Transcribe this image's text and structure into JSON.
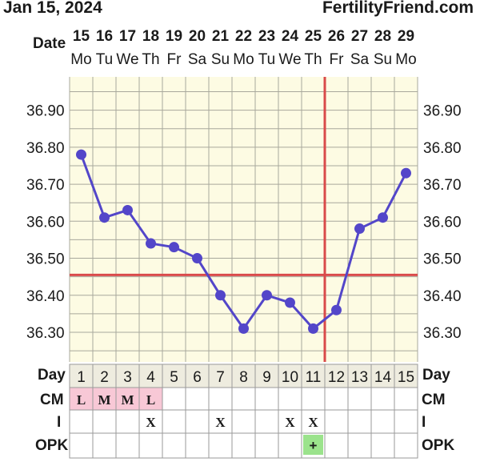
{
  "header": {
    "date": "Jan 15, 2024",
    "brand": "FertilityFriend.com"
  },
  "chart_data": {
    "type": "line",
    "date_label": "Date",
    "dates": [
      "15",
      "16",
      "17",
      "18",
      "19",
      "20",
      "21",
      "22",
      "23",
      "24",
      "25",
      "26",
      "27",
      "28",
      "29"
    ],
    "weekdays": [
      "Mo",
      "Tu",
      "We",
      "Th",
      "Fr",
      "Sa",
      "Su",
      "Mo",
      "Tu",
      "We",
      "Th",
      "Fr",
      "Sa",
      "Su",
      "Mo"
    ],
    "cycle_days": [
      "1",
      "2",
      "3",
      "4",
      "5",
      "6",
      "7",
      "8",
      "9",
      "10",
      "11",
      "12",
      "13",
      "14",
      "15"
    ],
    "y_ticks": [
      "36.90",
      "36.80",
      "36.70",
      "36.60",
      "36.50",
      "36.40",
      "36.30"
    ],
    "ylim": [
      36.22,
      36.99
    ],
    "values": [
      36.78,
      36.61,
      36.63,
      36.54,
      36.53,
      36.5,
      36.4,
      36.31,
      36.4,
      36.38,
      36.31,
      36.36,
      36.58,
      36.61,
      36.73
    ],
    "coverline": 36.455,
    "ovulation_day": 12,
    "colors": {
      "line": "#5346c9",
      "coverline": "#d94a4a",
      "grid": "#a8a89c",
      "plot_bg": "#fdfbe3",
      "cm_highlight": "#f8c8d6",
      "opk_positive": "#9be38c"
    }
  },
  "rows": {
    "day_label": "Day",
    "cm_label": "CM",
    "i_label": "I",
    "opk_label": "OPK",
    "cm": [
      "L",
      "M",
      "M",
      "L",
      "",
      "",
      "",
      "",
      "",
      "",
      "",
      "",
      "",
      "",
      ""
    ],
    "intercourse": [
      "",
      "",
      "",
      "X",
      "",
      "",
      "X",
      "",
      "",
      "X",
      "X",
      "",
      "",
      "",
      ""
    ],
    "opk": [
      "",
      "",
      "",
      "",
      "",
      "",
      "",
      "",
      "",
      "",
      "+",
      "",
      "",
      "",
      ""
    ]
  }
}
